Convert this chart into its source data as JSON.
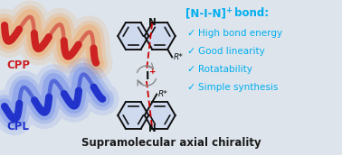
{
  "bg_color": "#dde4ec",
  "title_text": "Supramolecular axial chirality",
  "title_fontsize": 8.5,
  "title_color": "#1a1a1a",
  "nin_color": "#00aeef",
  "nin_fontsize": 8.5,
  "checklist": [
    "High bond energy",
    "Good linearity",
    "Rotatability",
    "Simple synthesis"
  ],
  "check_color": "#00aeef",
  "check_fontsize": 7.5,
  "cpp_label": "CPP",
  "cpp_color": "#cc2222",
  "cpl_label": "CPL",
  "cpl_color": "#2233cc",
  "cpp_glow": "#f0a050",
  "cpl_glow": "#6080e8",
  "mol_fill": "#c8d4f0",
  "i_color": "#cc0000",
  "bond_color": "#cc0000",
  "mol_line_color": "#111111"
}
